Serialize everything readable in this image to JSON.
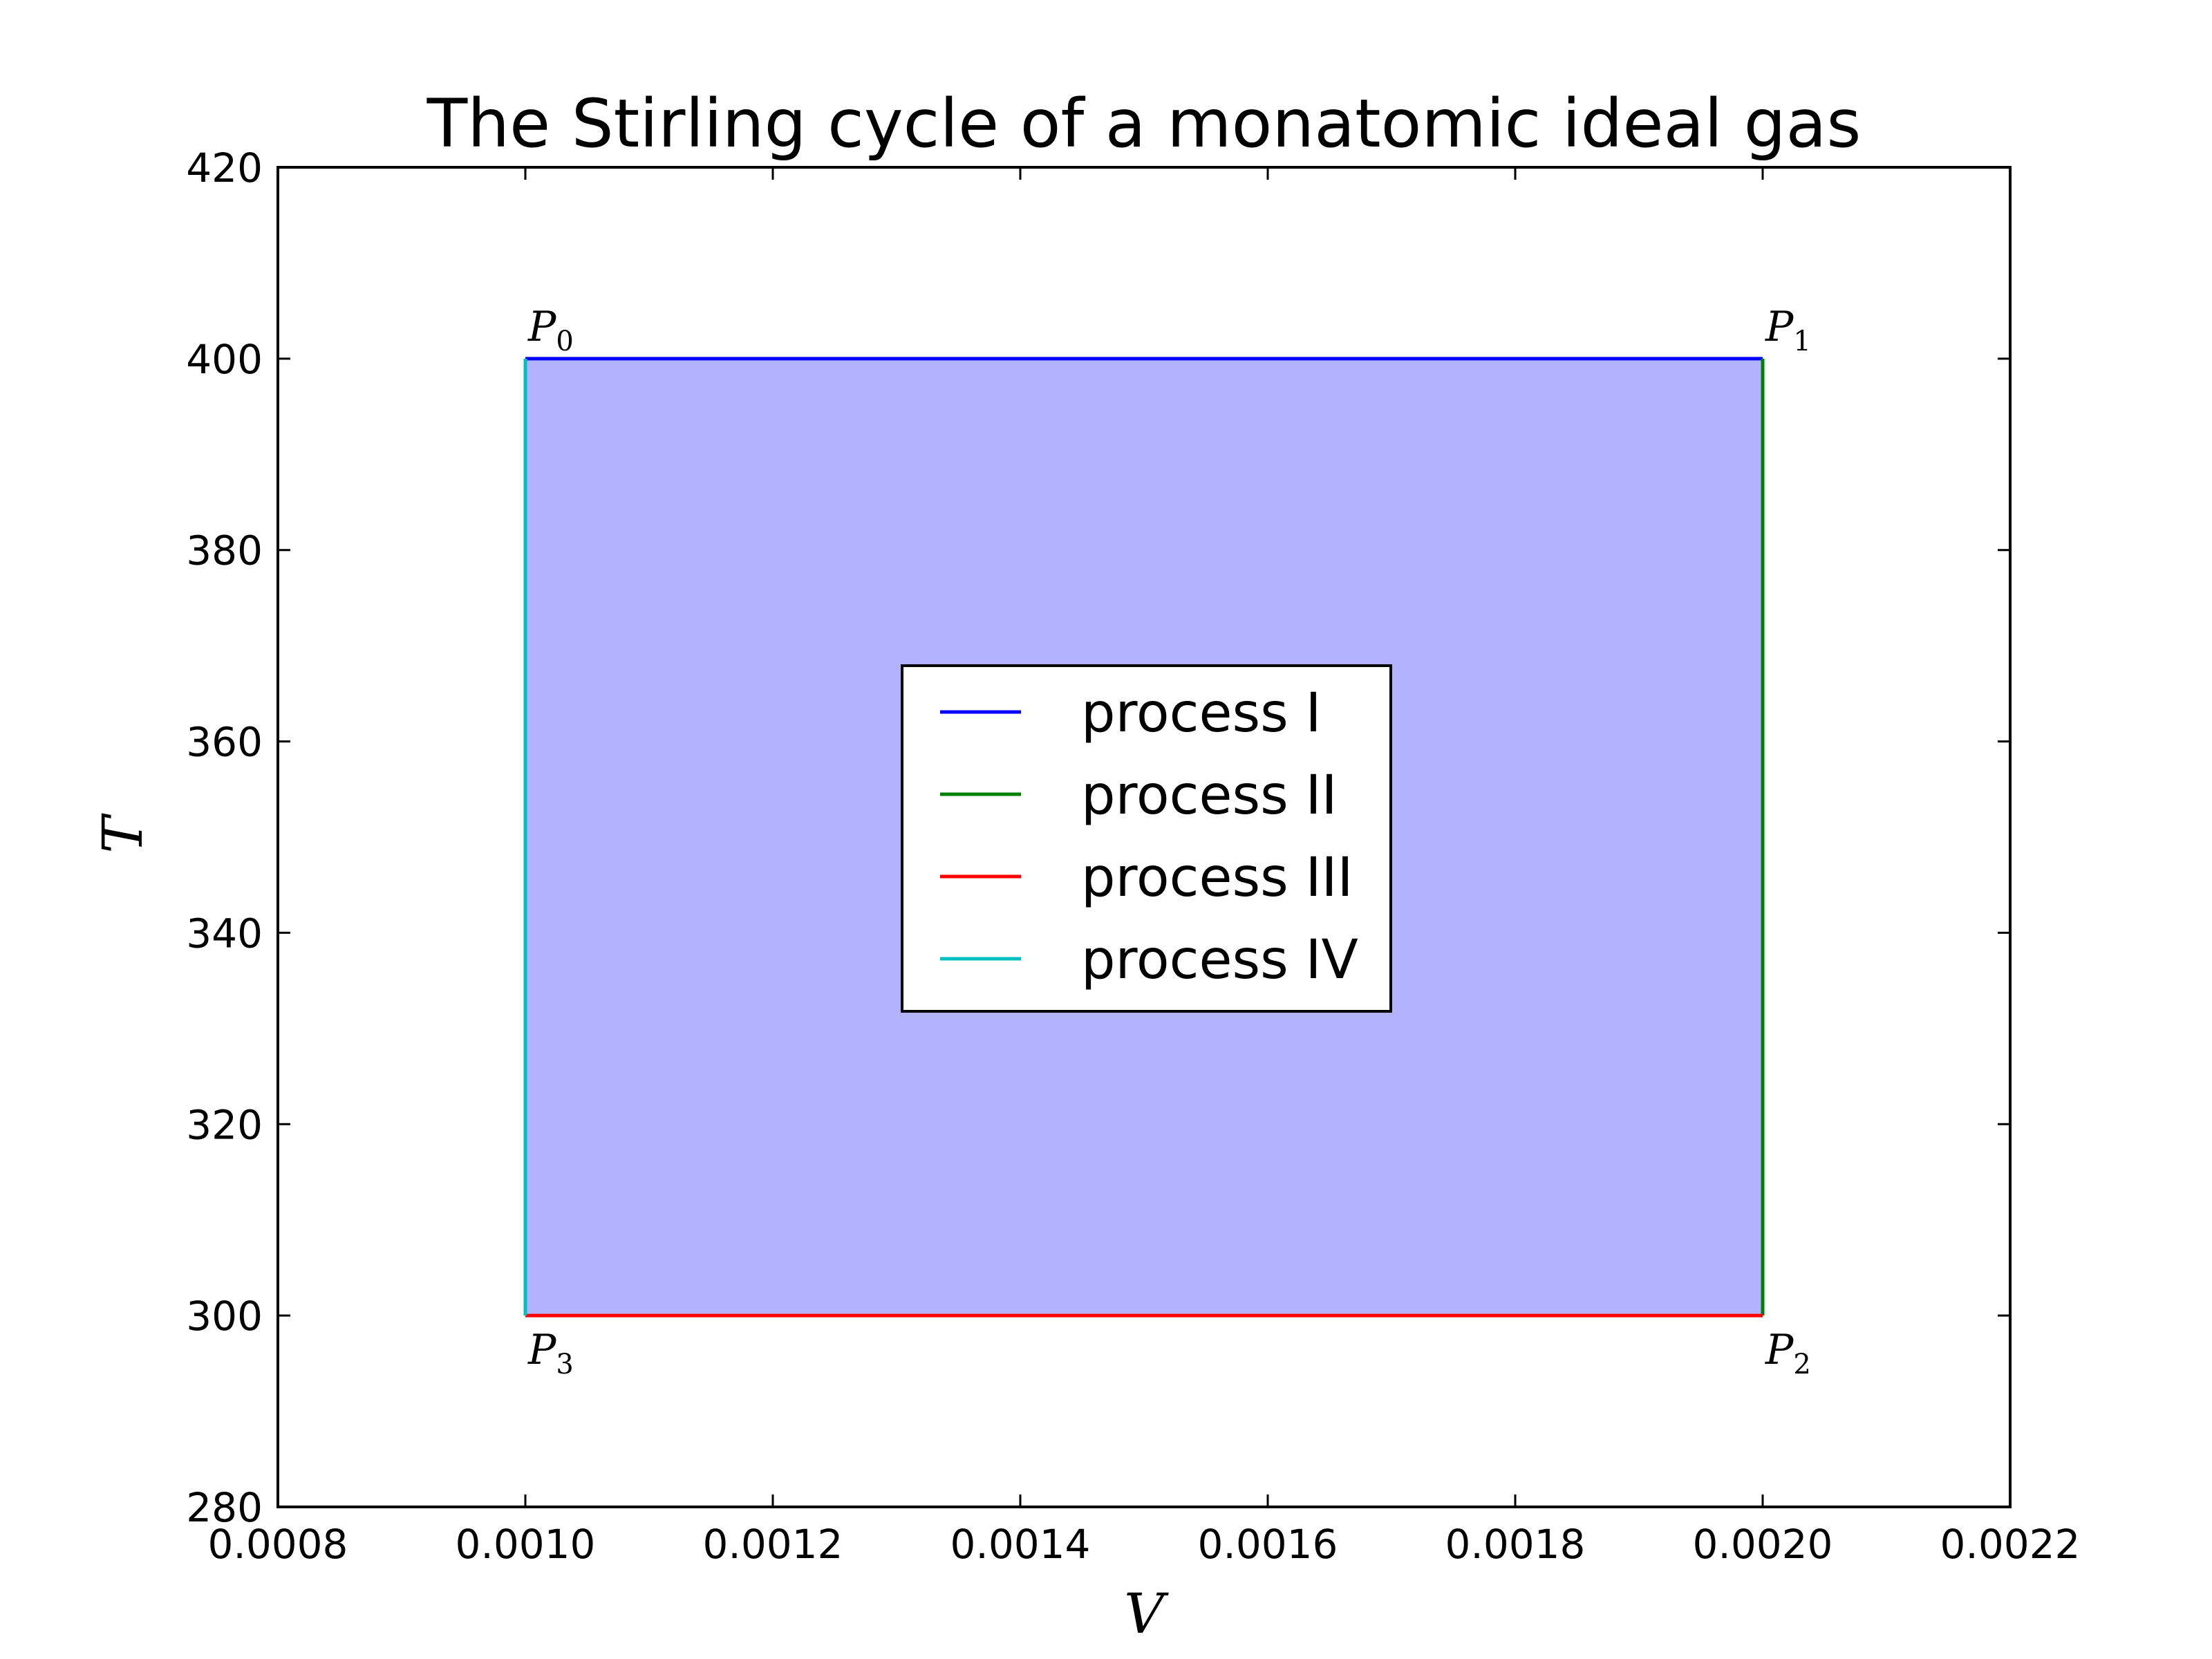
{
  "chart_data": {
    "type": "line",
    "title": "The Stirling cycle of a monatomic ideal gas",
    "xlabel": "V",
    "ylabel": "T",
    "xlim": [
      0.0008,
      0.0022
    ],
    "ylim": [
      280,
      420
    ],
    "x_ticks": [
      "0.0008",
      "0.0010",
      "0.0012",
      "0.0014",
      "0.0016",
      "0.0018",
      "0.0020",
      "0.0022"
    ],
    "y_ticks": [
      "280",
      "300",
      "320",
      "340",
      "360",
      "380",
      "400",
      "420"
    ],
    "grid": false,
    "legend_position": "center",
    "fill": {
      "color": "#b2b2fd",
      "polygon": [
        {
          "x": 0.001,
          "y": 400
        },
        {
          "x": 0.002,
          "y": 400
        },
        {
          "x": 0.002,
          "y": 300
        },
        {
          "x": 0.001,
          "y": 300
        }
      ]
    },
    "series": [
      {
        "name": "process I",
        "color": "#0000ff",
        "x": [
          0.001,
          0.002
        ],
        "y": [
          400,
          400
        ]
      },
      {
        "name": "process II",
        "color": "#008000",
        "x": [
          0.002,
          0.002
        ],
        "y": [
          400,
          300
        ]
      },
      {
        "name": "process III",
        "color": "#ff0000",
        "x": [
          0.002,
          0.001
        ],
        "y": [
          300,
          300
        ]
      },
      {
        "name": "process IV",
        "color": "#00bfbf",
        "x": [
          0.001,
          0.001
        ],
        "y": [
          300,
          400
        ]
      }
    ],
    "annotations": [
      {
        "base": "P",
        "sub": "0",
        "x": 0.001,
        "y": 400,
        "anchor": "above"
      },
      {
        "base": "P",
        "sub": "1",
        "x": 0.002,
        "y": 400,
        "anchor": "above"
      },
      {
        "base": "P",
        "sub": "2",
        "x": 0.002,
        "y": 300,
        "anchor": "below"
      },
      {
        "base": "P",
        "sub": "3",
        "x": 0.001,
        "y": 300,
        "anchor": "below"
      }
    ]
  }
}
